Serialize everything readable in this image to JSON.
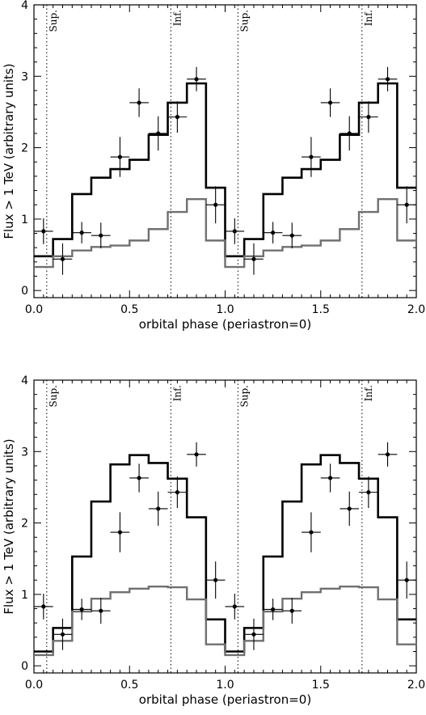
{
  "chart_data": [
    {
      "type": "line",
      "panel": "top",
      "xlabel": "orbital phase (periastron=0)",
      "ylabel": "Flux > 1 TeV (arbitrary units)",
      "xlim": [
        0.0,
        2.0
      ],
      "ylim": [
        -0.1,
        4.0
      ],
      "x_ticks": [
        "0.0",
        "0.5",
        "1.0",
        "1.5",
        "2.0"
      ],
      "y_ticks": [
        "0",
        "1",
        "2",
        "3",
        "4"
      ],
      "markers": [
        {
          "x": 0.067,
          "label": "Sup."
        },
        {
          "x": 0.716,
          "label": "Inf."
        },
        {
          "x": 1.067,
          "label": "Sup."
        },
        {
          "x": 1.716,
          "label": "Inf."
        }
      ],
      "series": [
        {
          "style": "step",
          "color": "#000000",
          "edges": [
            0.0,
            0.1,
            0.2,
            0.3,
            0.4,
            0.5,
            0.6,
            0.7,
            0.8,
            0.9,
            1.0,
            1.1,
            1.2,
            1.3,
            1.4,
            1.5,
            1.6,
            1.7,
            1.8,
            1.9,
            2.0
          ],
          "values": [
            0.48,
            0.72,
            1.35,
            1.58,
            1.7,
            1.83,
            2.18,
            2.63,
            2.9,
            1.44,
            0.48,
            0.72,
            1.35,
            1.58,
            1.7,
            1.83,
            2.18,
            2.63,
            2.9,
            1.44
          ]
        },
        {
          "style": "step",
          "color": "#707070",
          "edges": [
            0.0,
            0.1,
            0.2,
            0.3,
            0.4,
            0.5,
            0.6,
            0.7,
            0.8,
            0.9,
            1.0,
            1.1,
            1.2,
            1.3,
            1.4,
            1.5,
            1.6,
            1.7,
            1.8,
            1.9,
            2.0
          ],
          "values": [
            0.33,
            0.48,
            0.56,
            0.61,
            0.63,
            0.7,
            0.86,
            1.1,
            1.28,
            0.7,
            0.33,
            0.48,
            0.56,
            0.61,
            0.63,
            0.7,
            0.86,
            1.1,
            1.28,
            0.7
          ]
        },
        {
          "style": "errorbar",
          "color": "#000000",
          "x": [
            0.05,
            0.15,
            0.25,
            0.35,
            0.45,
            0.55,
            0.65,
            0.75,
            0.85,
            0.95,
            1.05,
            1.15,
            1.25,
            1.35,
            1.45,
            1.55,
            1.65,
            1.75,
            1.85,
            1.95
          ],
          "y": [
            0.83,
            0.44,
            0.81,
            0.77,
            1.87,
            2.63,
            2.2,
            2.43,
            2.96,
            1.2,
            0.83,
            0.44,
            0.81,
            0.77,
            1.87,
            2.63,
            2.2,
            2.43,
            2.96,
            1.2
          ],
          "yerr": [
            0.18,
            0.22,
            0.15,
            0.18,
            0.28,
            0.2,
            0.24,
            0.22,
            0.17,
            0.26,
            0.18,
            0.22,
            0.15,
            0.18,
            0.28,
            0.2,
            0.24,
            0.22,
            0.17,
            0.26
          ],
          "xerr": 0.05
        }
      ]
    },
    {
      "type": "line",
      "panel": "bottom",
      "xlabel": "orbital phase (periastron=0)",
      "ylabel": "Flux > 1 TeV (arbitrary units)",
      "xlim": [
        0.0,
        2.0
      ],
      "ylim": [
        -0.1,
        4.0
      ],
      "x_ticks": [
        "0.0",
        "0.5",
        "1.0",
        "1.5",
        "2.0"
      ],
      "y_ticks": [
        "0",
        "1",
        "2",
        "3",
        "4"
      ],
      "markers": [
        {
          "x": 0.067,
          "label": "Sup."
        },
        {
          "x": 0.716,
          "label": "Inf."
        },
        {
          "x": 1.067,
          "label": "Sup."
        },
        {
          "x": 1.716,
          "label": "Inf."
        }
      ],
      "series": [
        {
          "style": "step",
          "color": "#000000",
          "edges": [
            0.0,
            0.1,
            0.2,
            0.3,
            0.4,
            0.5,
            0.6,
            0.7,
            0.8,
            0.9,
            1.0,
            1.1,
            1.2,
            1.3,
            1.4,
            1.5,
            1.6,
            1.7,
            1.8,
            1.9,
            2.0
          ],
          "values": [
            0.2,
            0.53,
            1.53,
            2.3,
            2.82,
            2.95,
            2.84,
            2.62,
            2.08,
            0.65,
            0.2,
            0.53,
            1.53,
            2.3,
            2.82,
            2.95,
            2.84,
            2.62,
            2.08,
            0.65
          ]
        },
        {
          "style": "step",
          "color": "#707070",
          "edges": [
            0.0,
            0.1,
            0.2,
            0.3,
            0.4,
            0.5,
            0.6,
            0.7,
            0.8,
            0.9,
            1.0,
            1.1,
            1.2,
            1.3,
            1.4,
            1.5,
            1.6,
            1.7,
            1.8,
            1.9,
            2.0
          ],
          "values": [
            0.15,
            0.35,
            0.76,
            0.94,
            1.03,
            1.08,
            1.11,
            1.1,
            0.93,
            0.3,
            0.15,
            0.35,
            0.76,
            0.94,
            1.03,
            1.08,
            1.11,
            1.1,
            0.93,
            0.3
          ]
        },
        {
          "style": "errorbar",
          "color": "#000000",
          "x": [
            0.05,
            0.15,
            0.25,
            0.35,
            0.45,
            0.55,
            0.65,
            0.75,
            0.85,
            0.95,
            1.05,
            1.15,
            1.25,
            1.35,
            1.45,
            1.55,
            1.65,
            1.75,
            1.85,
            1.95
          ],
          "y": [
            0.83,
            0.44,
            0.79,
            0.77,
            1.87,
            2.63,
            2.2,
            2.43,
            2.96,
            1.2,
            0.83,
            0.44,
            0.79,
            0.77,
            1.87,
            2.63,
            2.2,
            2.43,
            2.96,
            1.2
          ],
          "yerr": [
            0.18,
            0.22,
            0.15,
            0.18,
            0.28,
            0.2,
            0.24,
            0.22,
            0.17,
            0.26,
            0.18,
            0.22,
            0.15,
            0.18,
            0.28,
            0.2,
            0.24,
            0.22,
            0.17,
            0.26
          ],
          "xerr": 0.05
        }
      ]
    }
  ]
}
